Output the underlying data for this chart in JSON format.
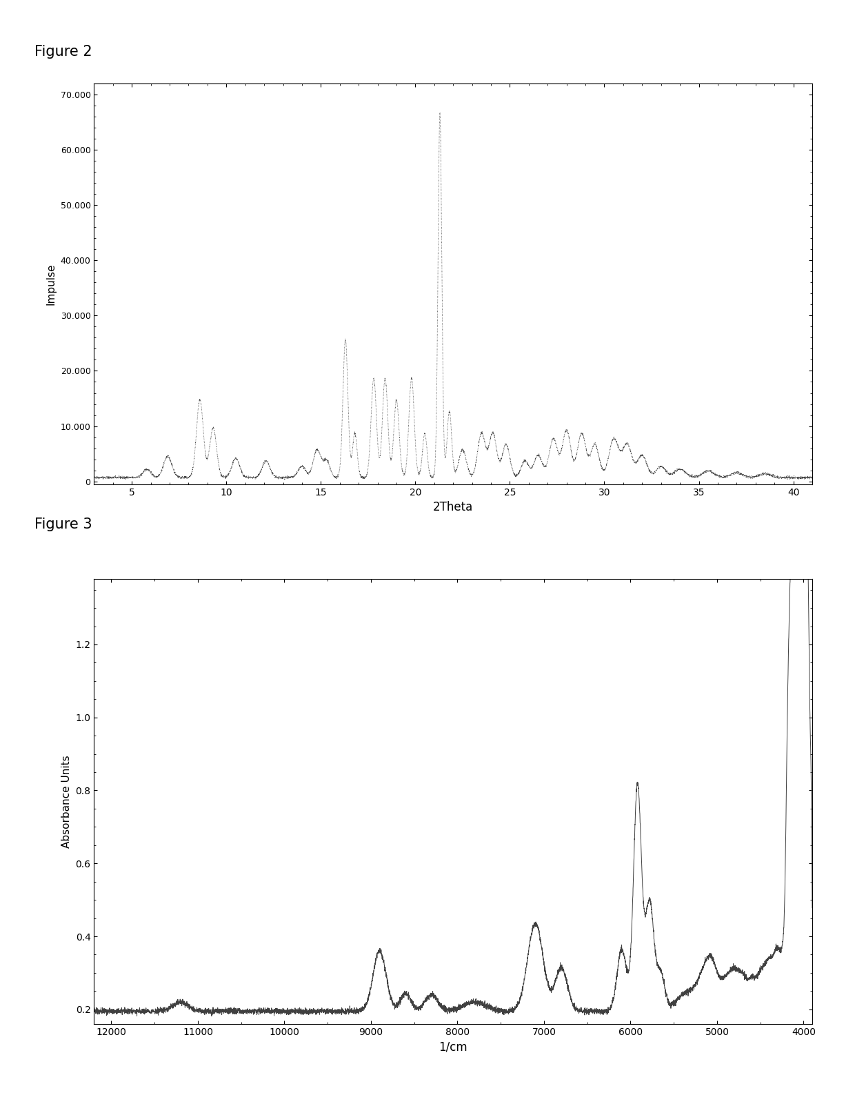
{
  "fig2_title": "Figure 2",
  "fig2_xlabel": "2Theta",
  "fig2_ylabel": "Impulse",
  "fig2_xlim": [
    3,
    41
  ],
  "fig2_ylim": [
    -500,
    72000
  ],
  "fig2_yticks": [
    0,
    10000,
    20000,
    30000,
    40000,
    50000,
    60000,
    70000
  ],
  "fig2_ytick_labels": [
    "0",
    "10.000",
    "20.000",
    "30.000",
    "40.000",
    "50.000",
    "60.000",
    "70.000"
  ],
  "fig2_xticks": [
    5,
    10,
    15,
    20,
    25,
    30,
    35,
    40
  ],
  "fig3_title": "Figure 3",
  "fig3_xlabel": "1/cm",
  "fig3_ylabel": "Absorbance Units",
  "fig3_xlim": [
    12200,
    3900
  ],
  "fig3_ylim": [
    0.16,
    1.38
  ],
  "fig3_yticks": [
    0.2,
    0.4,
    0.6,
    0.8,
    1.0,
    1.2
  ],
  "fig3_xticks": [
    12000,
    11000,
    10000,
    9000,
    8000,
    7000,
    6000,
    5000,
    4000
  ],
  "line_color": "#404040",
  "bg_color": "#ffffff",
  "label_color": "#000000"
}
